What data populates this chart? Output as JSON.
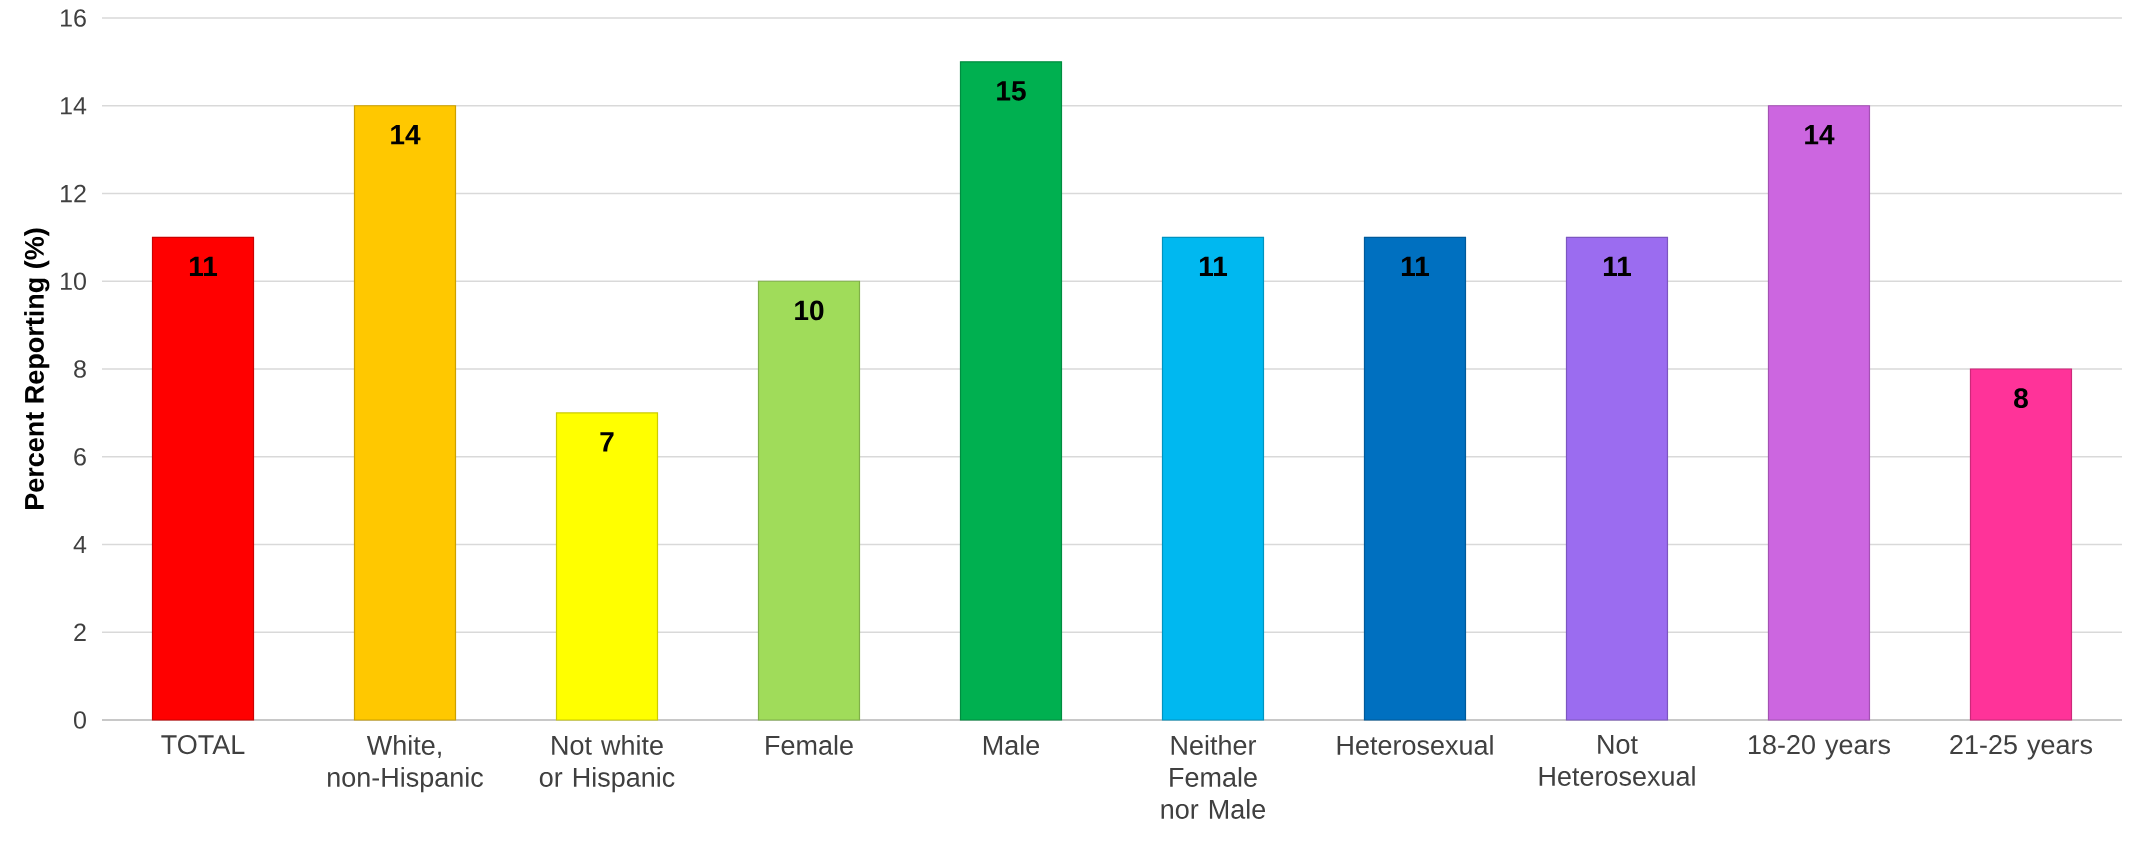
{
  "chart_data": {
    "type": "bar",
    "ylabel": "Percent Reporting (%)",
    "categories": [
      "TOTAL",
      "White, non-Hispanic",
      "Not white or Hispanic",
      "Female",
      "Male",
      "Neither Female nor Male",
      "Heterosexual",
      "Not Heterosexual",
      "18-20 years",
      "21-25 years"
    ],
    "values": [
      11,
      14,
      7,
      10,
      15,
      11,
      11,
      11,
      14,
      8
    ],
    "colors": [
      "#ff0000",
      "#ffc800",
      "#ffff00",
      "#a0dc5a",
      "#00b050",
      "#00b8f0",
      "#0070c0",
      "#9b6cf0",
      "#cc66e0",
      "#ff3399"
    ],
    "ylim": [
      0,
      16
    ],
    "yticks": [
      0,
      2,
      4,
      6,
      8,
      10,
      12,
      14,
      16
    ],
    "grid": "y",
    "data_labels": true
  }
}
